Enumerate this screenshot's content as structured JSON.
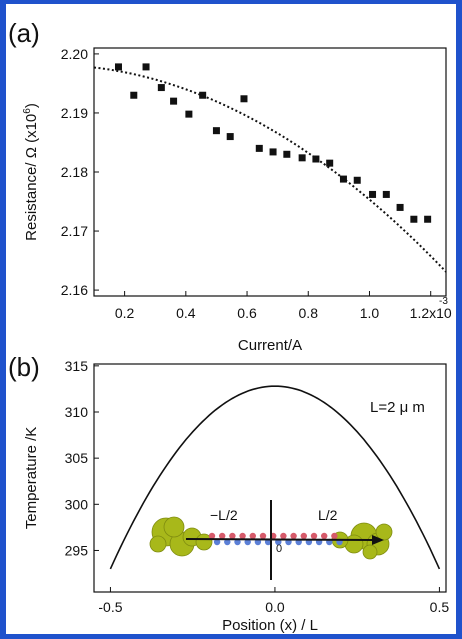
{
  "chart_data": [
    {
      "type": "scatter",
      "panel_label": "(a)",
      "title": "",
      "xlabel": "Current/A",
      "ylabel": "Resistance/ Ω  (x10",
      "ylabel_exp": "6",
      "ylabel_close": ")",
      "xlim": [
        0.1,
        1.25
      ],
      "ylim": [
        2.159,
        2.201
      ],
      "x_ticks": [
        0.2,
        0.4,
        0.6,
        0.8,
        1.0,
        1.2
      ],
      "x_tick_labels": [
        "0.2",
        "0.4",
        "0.6",
        "0.8",
        "1.0",
        "1.2x10"
      ],
      "x_tick_exp": "-3",
      "y_ticks": [
        2.16,
        2.17,
        2.18,
        2.19,
        2.2
      ],
      "y_tick_labels": [
        "2.16",
        "2.17",
        "2.18",
        "2.19",
        "2.20"
      ],
      "series": [
        {
          "style": "square-marker",
          "color": "#111111",
          "points": [
            [
              0.18,
              2.1978
            ],
            [
              0.23,
              2.193
            ],
            [
              0.27,
              2.1978
            ],
            [
              0.32,
              2.1943
            ],
            [
              0.36,
              2.192
            ],
            [
              0.41,
              2.1898
            ],
            [
              0.455,
              2.193
            ],
            [
              0.5,
              2.187
            ],
            [
              0.545,
              2.186
            ],
            [
              0.59,
              2.1924
            ],
            [
              0.64,
              2.184
            ],
            [
              0.685,
              2.1834
            ],
            [
              0.73,
              2.183
            ],
            [
              0.78,
              2.1824
            ],
            [
              0.825,
              2.1822
            ],
            [
              0.87,
              2.1815
            ],
            [
              0.915,
              2.1788
            ],
            [
              0.96,
              2.1786
            ],
            [
              1.01,
              2.1762
            ],
            [
              1.055,
              2.1762
            ],
            [
              1.1,
              2.174
            ],
            [
              1.145,
              2.172
            ],
            [
              1.19,
              2.172
            ]
          ]
        },
        {
          "style": "dotted-fit",
          "color": "#111111",
          "fit": {
            "form": "quadratic",
            "a": 2.1981,
            "b": -0.00187,
            "c": -0.0209
          },
          "x_range": [
            0.1,
            1.25
          ]
        }
      ]
    },
    {
      "type": "line",
      "panel_label": "(b)",
      "title": "",
      "xlabel": "Position (x) / L",
      "ylabel": "Temperature /K",
      "xlim": [
        -0.55,
        0.52
      ],
      "ylim": [
        290.5,
        315.2
      ],
      "x_ticks": [
        -0.5,
        0.0,
        0.5
      ],
      "x_tick_labels": [
        "-0.5",
        "0.0",
        "0.5"
      ],
      "y_ticks": [
        295,
        300,
        305,
        310,
        315
      ],
      "y_tick_labels": [
        "295",
        "300",
        "305",
        "310",
        "315"
      ],
      "annotation": "L=2 μ m",
      "series": [
        {
          "style": "solid",
          "color": "#111111",
          "curve": {
            "form": "parabola",
            "peak_x": 0.0,
            "peak_y": 312.8,
            "edge_x": 0.5,
            "edge_y": 293.0
          },
          "x_range": [
            -0.5,
            0.5
          ]
        }
      ],
      "inset": {
        "left_label": "−L/2",
        "right_label": "L/2",
        "center_label": "0",
        "atom_color": "#a8b81a",
        "chain_colors": [
          "#d65a6a",
          "#5b7fd6"
        ]
      }
    }
  ]
}
